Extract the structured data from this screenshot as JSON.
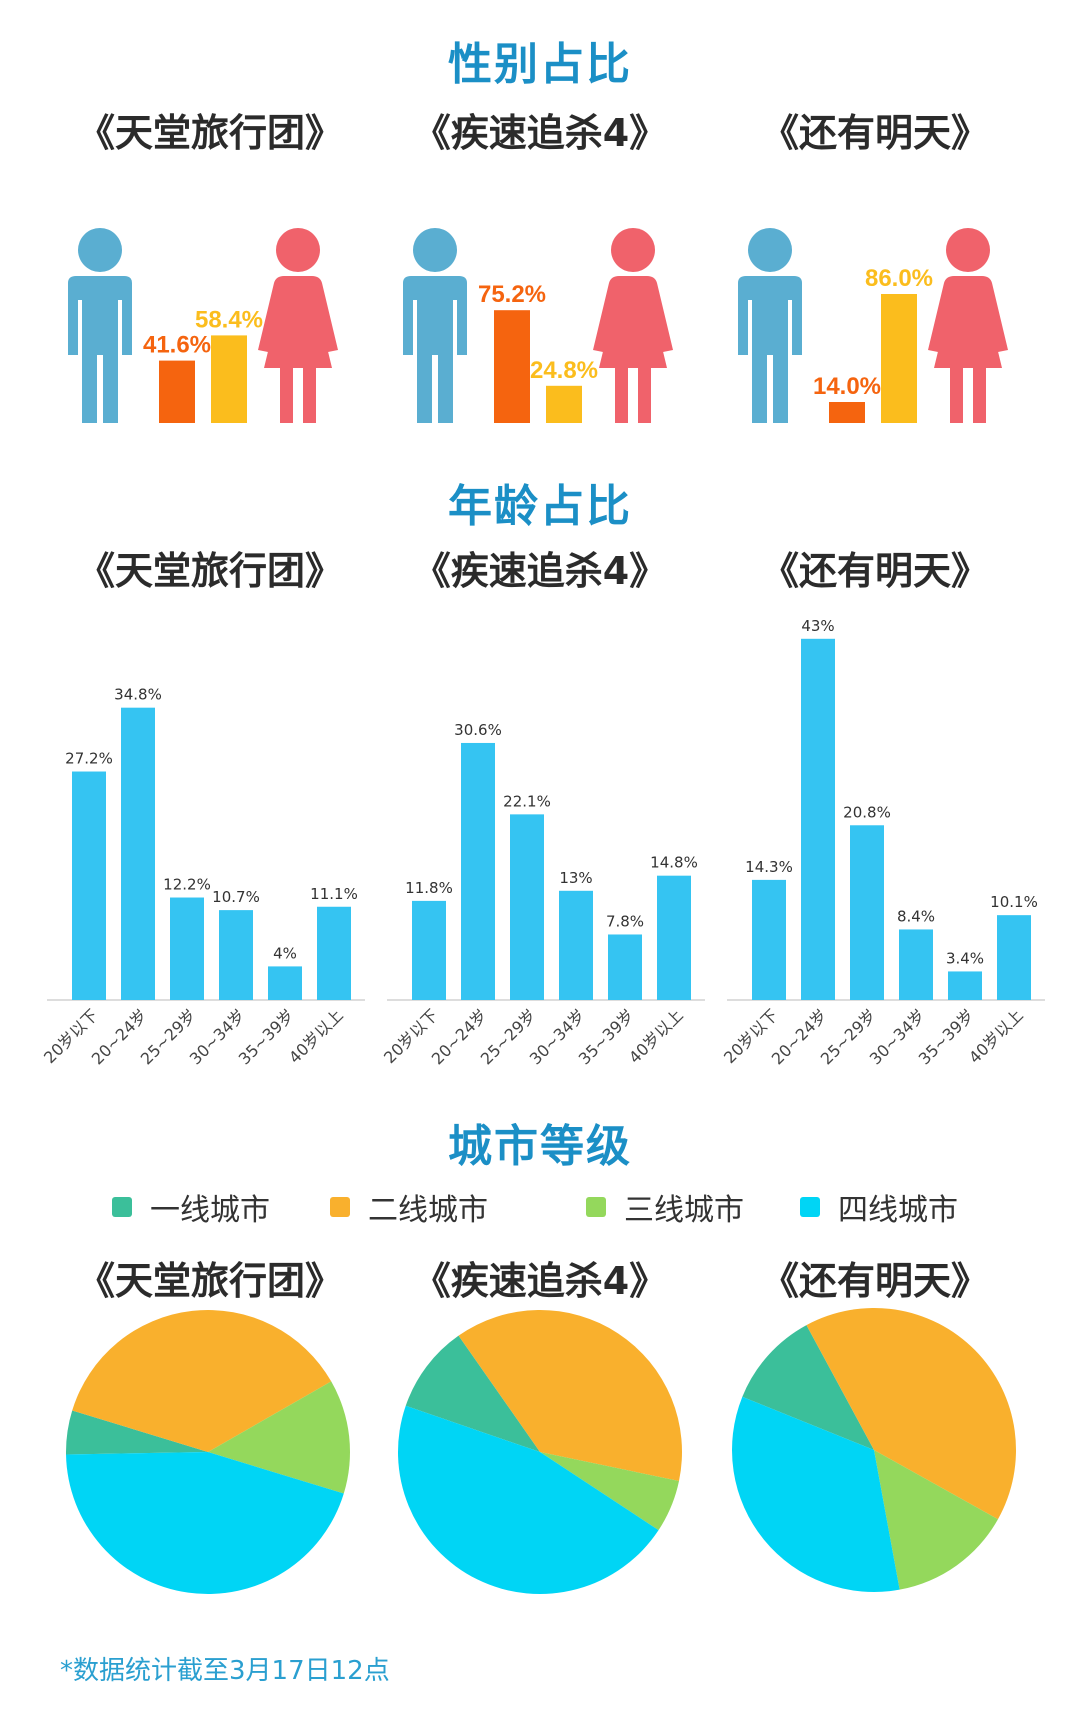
{
  "sections": {
    "gender": "性别占比",
    "age": "年龄占比",
    "city": "城市等级"
  },
  "films": [
    "《天堂旅行团》",
    "《疾速追杀4》",
    "《还有明天》"
  ],
  "colors": {
    "male_icon": "#5aaed1",
    "female_icon": "#f0626b",
    "male_bar": "#f5640f",
    "female_bar": "#fbbd1d",
    "age_bar": "#35c4f2",
    "tier1": "#3bbf9a",
    "tier2": "#f9b02d",
    "tier3": "#94d85c",
    "tier4": "#00d5f5"
  },
  "legend": [
    "一线城市",
    "二线城市",
    "三线城市",
    "四线城市"
  ],
  "footnote": "*数据统计截至3月17日12点",
  "chart_data": [
    {
      "type": "bar",
      "title": "性别占比",
      "categories": [
        "《天堂旅行团》",
        "《疾速追杀4》",
        "《还有明天》"
      ],
      "series": [
        {
          "values": [
            41.6,
            75.2,
            14.0
          ],
          "labels": [
            "41.6%",
            "75.2%",
            "14.0%"
          ]
        },
        {
          "values": [
            58.4,
            24.8,
            86.0
          ],
          "labels": [
            "58.4%",
            "24.8%",
            "86.0%"
          ]
        }
      ]
    },
    {
      "type": "bar",
      "title": "年龄占比",
      "categories": [
        "20岁以下",
        "20~24岁",
        "25~29岁",
        "30~34岁",
        "35~39岁",
        "40岁以上"
      ],
      "series": [
        {
          "name": "《天堂旅行团》",
          "values": [
            27.2,
            34.8,
            12.2,
            10.7,
            4,
            11.1
          ],
          "labels": [
            "27.2%",
            "34.8%",
            "12.2%",
            "10.7%",
            "4%",
            "11.1%"
          ]
        },
        {
          "name": "《疾速追杀4》",
          "values": [
            11.8,
            30.6,
            22.1,
            13,
            7.8,
            14.8
          ],
          "labels": [
            "11.8%",
            "30.6%",
            "22.1%",
            "13%",
            "7.8%",
            "14.8%"
          ]
        },
        {
          "name": "《还有明天》",
          "values": [
            14.3,
            43,
            20.8,
            8.4,
            3.4,
            10.1
          ],
          "labels": [
            "14.3%",
            "43%",
            "20.8%",
            "8.4%",
            "3.4%",
            "10.1%"
          ]
        }
      ]
    },
    {
      "type": "pie",
      "title": "城市等级",
      "categories": [
        "一线城市",
        "二线城市",
        "三线城市",
        "四线城市"
      ],
      "series": [
        {
          "name": "《天堂旅行团》",
          "values": [
            5,
            37,
            13,
            45
          ]
        },
        {
          "name": "《疾速追杀4》",
          "values": [
            10,
            38,
            6,
            46
          ]
        },
        {
          "name": "《还有明天》",
          "values": [
            11,
            41,
            14,
            34
          ]
        }
      ]
    }
  ]
}
